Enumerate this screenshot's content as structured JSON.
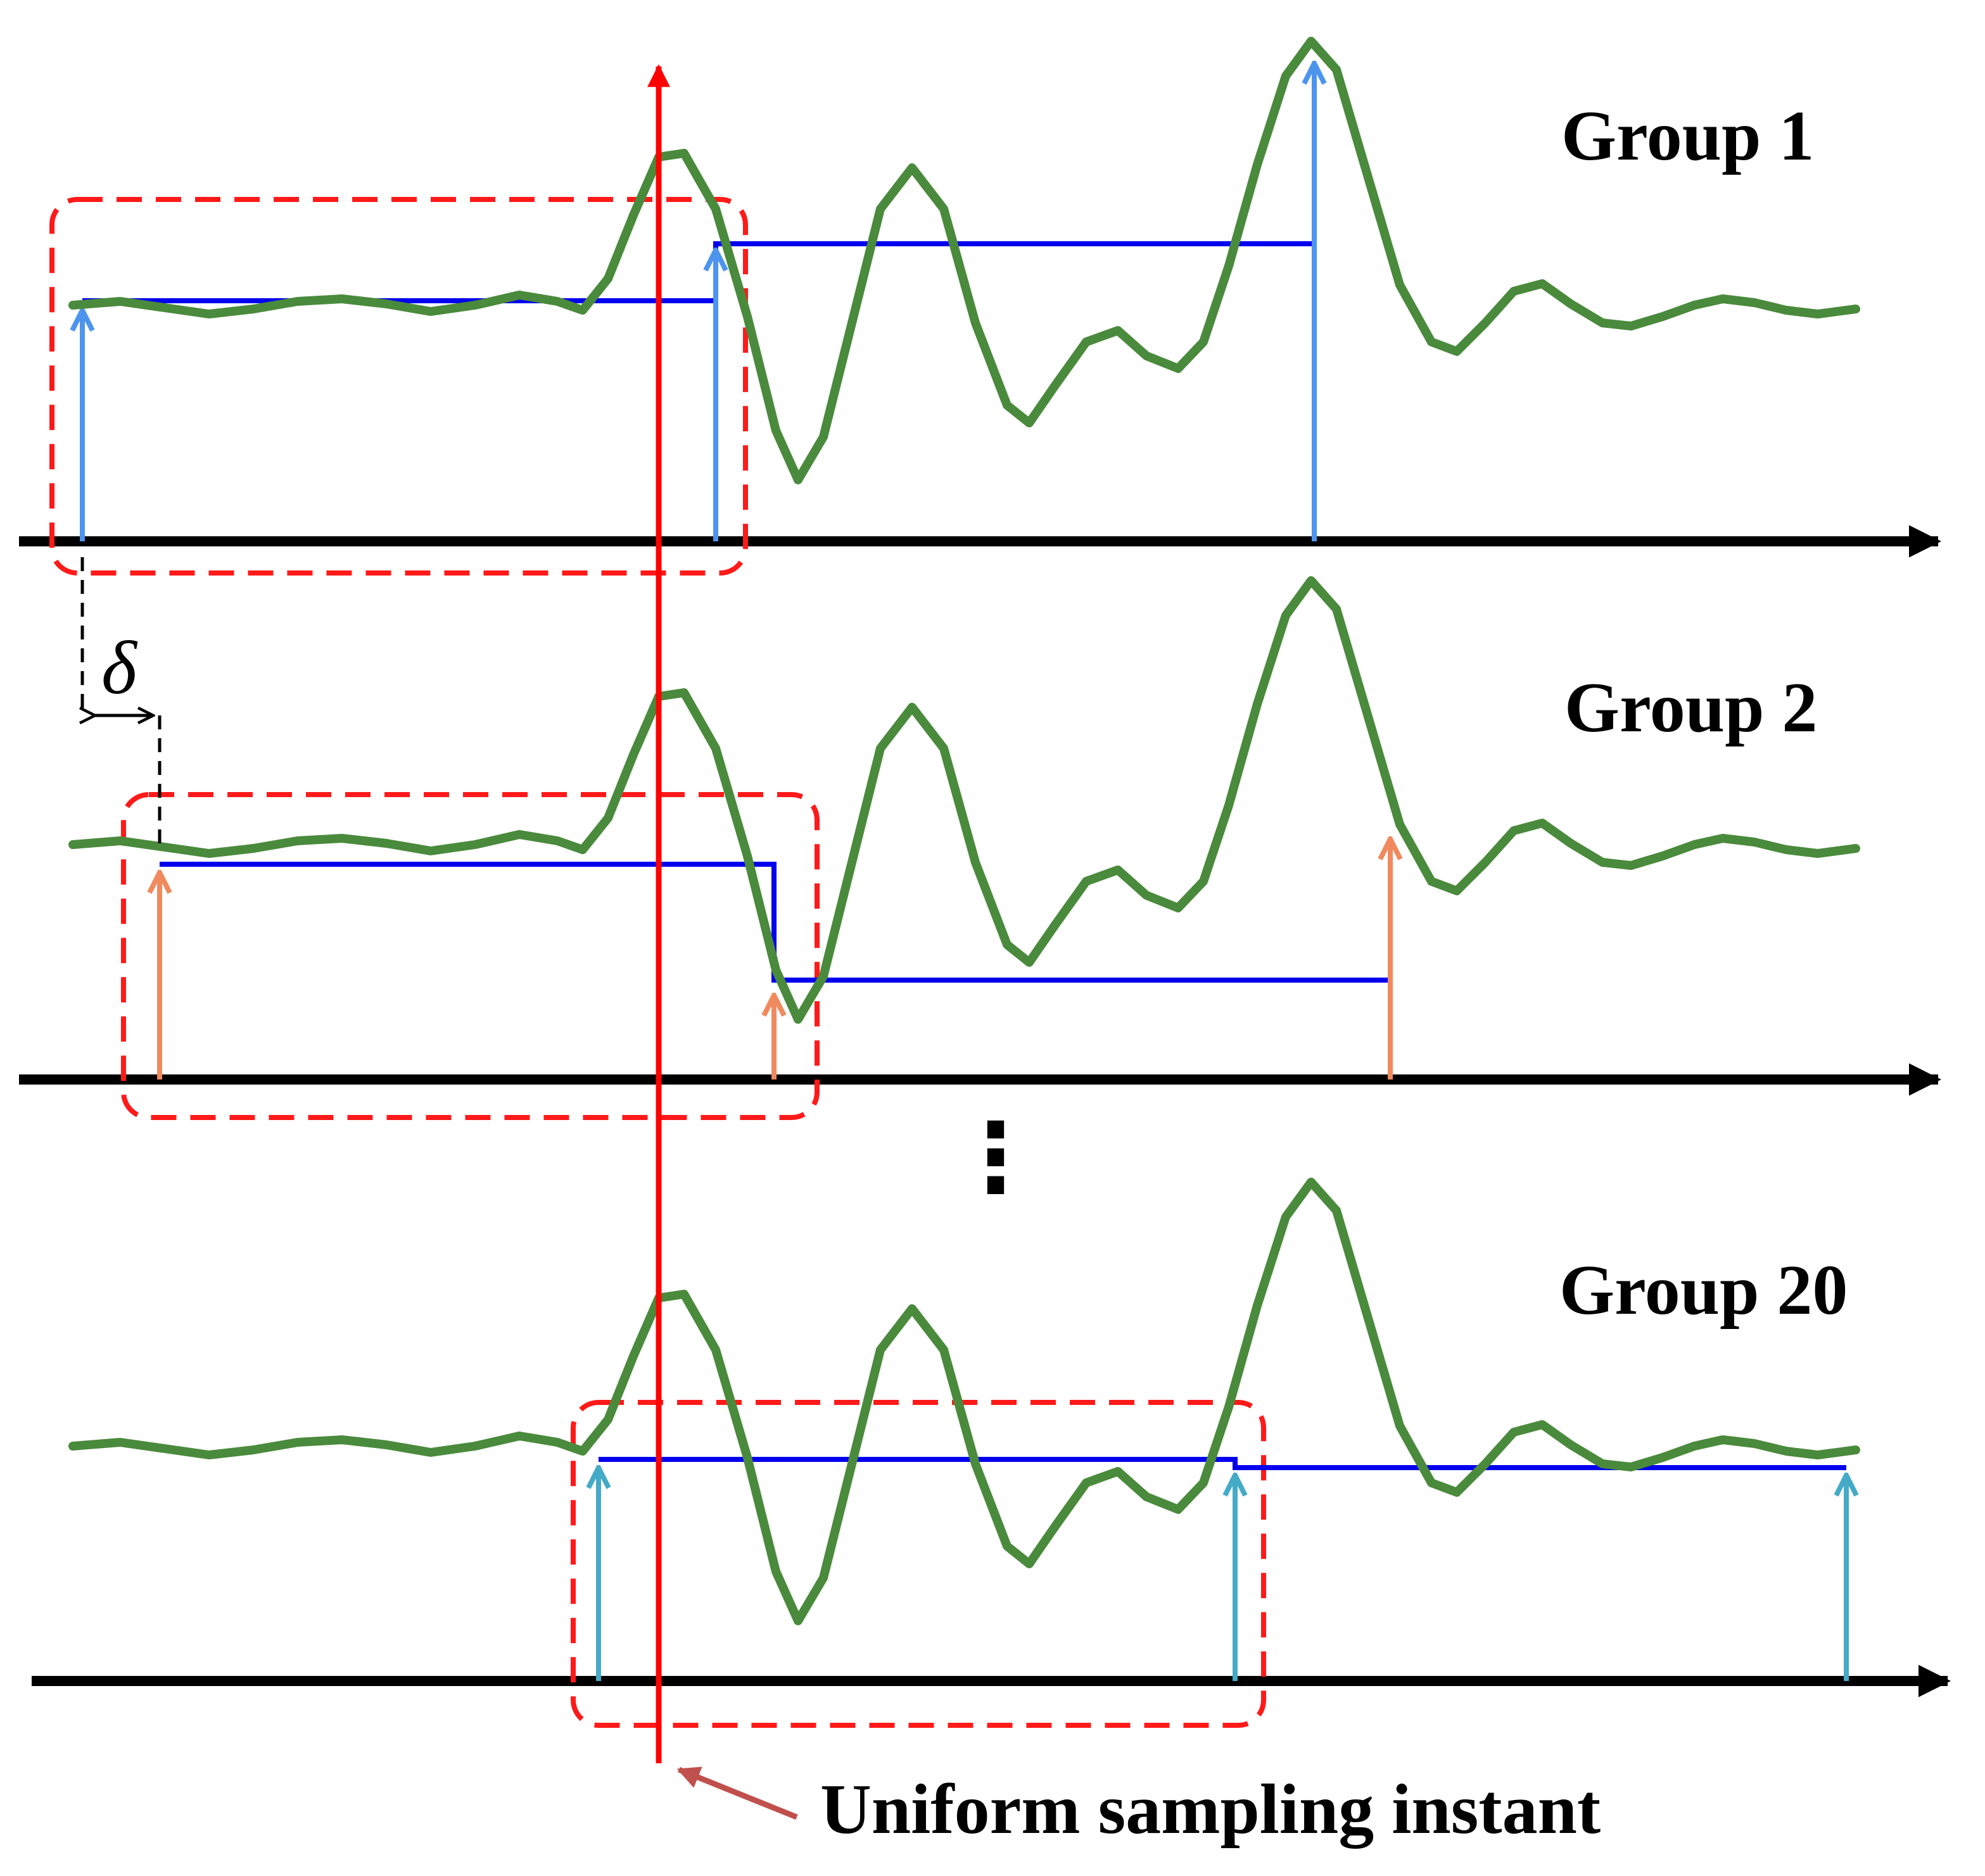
{
  "groups": [
    {
      "label": "Group 1"
    },
    {
      "label": "Group 2"
    },
    {
      "label": "Group 20"
    }
  ],
  "delta_symbol": "δ",
  "ellipsis": "⋮",
  "caption": "Uniform sampling instant",
  "colors": {
    "signal": "#4a8a3c",
    "axis": "#000000",
    "window": "#ff1a1a",
    "uniform_line": "#ff0000",
    "hold": "#0000ee",
    "group1_arrows": "#4d94ee",
    "group2_arrows": "#f08a5e",
    "group20_arrows": "#45aac8",
    "caption_arrow": "#c0504d"
  }
}
